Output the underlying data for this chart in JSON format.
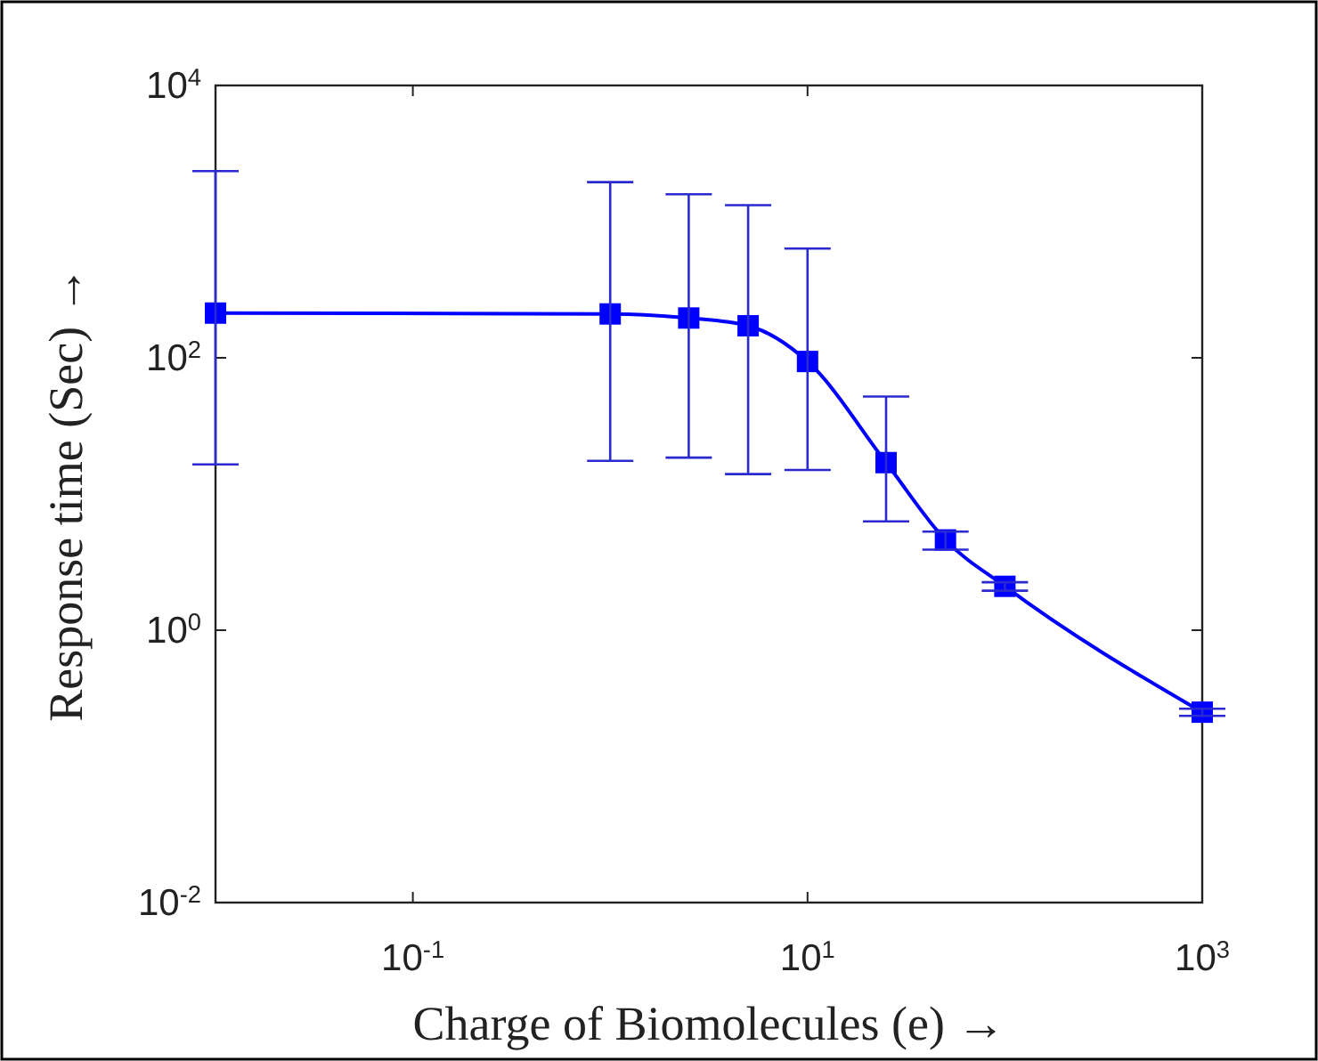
{
  "chart_data": {
    "type": "line",
    "xlabel": "Charge of Biomolecules (e) →",
    "ylabel": "Response time (Sec) →",
    "x": [
      0.01,
      1,
      2.5,
      5,
      10,
      25,
      50,
      100,
      1000
    ],
    "series": [
      {
        "color": "#0000ff",
        "values": [
          213,
          210,
          196,
          172,
          94,
          17,
          4.6,
          2.1,
          0.25
        ],
        "errors": [
          [
            16.5,
            2350
          ],
          [
            17.5,
            1950
          ],
          [
            18.5,
            1590
          ],
          [
            14,
            1320
          ],
          [
            15,
            635
          ],
          [
            6.3,
            52
          ],
          [
            3.9,
            5.3
          ],
          [
            1.95,
            2.25
          ],
          [
            0.235,
            0.265
          ]
        ]
      }
    ],
    "log": "xy",
    "xlim": [
      0.01,
      1000
    ],
    "ylim": [
      0.01,
      10000
    ],
    "xticks": [
      {
        "value": 0.1,
        "label": "10$^{-1}$"
      },
      {
        "value": 10,
        "label": "10$^{1}$"
      },
      {
        "value": 1000,
        "label": "10$^{3}$"
      }
    ],
    "yticks": [
      {
        "value": 0.01,
        "label": "10$^{-2}$"
      },
      {
        "value": 1,
        "label": "10$^{0}$"
      },
      {
        "value": 100,
        "label": "10$^{2}$"
      },
      {
        "value": 10000,
        "label": "10$^{4}$"
      }
    ],
    "marker": "square",
    "line_style": "solid",
    "grid": false
  }
}
